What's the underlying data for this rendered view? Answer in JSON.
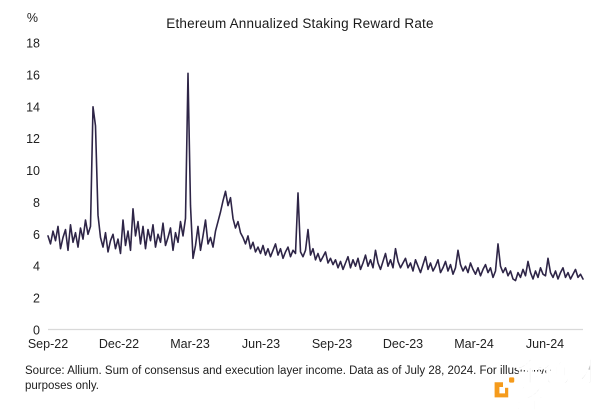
{
  "page": {
    "background": "#ffffff"
  },
  "chart_data": {
    "type": "line",
    "title": "Ethereum Annualized Staking Reward Rate",
    "unit_label": "%",
    "xlabel": "",
    "ylabel": "%",
    "ylim": [
      0,
      18
    ],
    "yticks": [
      0,
      2,
      4,
      6,
      8,
      10,
      12,
      14,
      16,
      18
    ],
    "xticklabels": [
      "Sep-22",
      "Dec-22",
      "Mar-23",
      "Jun-23",
      "Sep-23",
      "Dec-23",
      "Mar-24",
      "Jun-24"
    ],
    "grid": false,
    "legend_position": "none",
    "line_color": "#2e2547",
    "axis_line_color": "#d9d9d9",
    "series": [
      {
        "name": "Annualized staking reward rate (%)",
        "values": [
          5.9,
          5.4,
          6.2,
          5.6,
          6.5,
          5.1,
          5.8,
          6.3,
          5.0,
          6.6,
          5.5,
          6.1,
          5.2,
          6.4,
          5.7,
          6.9,
          6.0,
          6.5,
          14.0,
          12.8,
          7.2,
          5.8,
          5.2,
          6.1,
          4.9,
          5.6,
          6.0,
          5.1,
          5.7,
          4.8,
          6.9,
          5.3,
          6.2,
          5.0,
          7.6,
          5.9,
          6.8,
          5.4,
          6.5,
          5.1,
          6.3,
          5.6,
          6.6,
          5.2,
          6.0,
          5.5,
          6.7,
          5.3,
          5.8,
          6.4,
          5.0,
          6.1,
          5.5,
          6.8,
          5.9,
          7.0,
          16.1,
          7.8,
          4.5,
          5.3,
          6.5,
          5.0,
          5.9,
          6.9,
          5.4,
          5.8,
          5.2,
          6.2,
          6.8,
          7.4,
          8.1,
          8.7,
          7.8,
          8.3,
          7.0,
          6.4,
          6.8,
          6.1,
          5.8,
          5.4,
          5.9,
          5.1,
          5.5,
          4.9,
          5.2,
          4.8,
          5.3,
          4.7,
          5.1,
          4.6,
          5.0,
          5.4,
          4.7,
          5.1,
          4.5,
          4.9,
          5.2,
          4.6,
          5.0,
          4.8,
          8.6,
          4.9,
          4.6,
          5.0,
          6.3,
          4.7,
          5.1,
          4.4,
          4.8,
          4.3,
          4.6,
          4.9,
          4.2,
          4.5,
          4.1,
          4.4,
          3.9,
          4.3,
          3.8,
          4.2,
          4.6,
          3.9,
          4.4,
          4.0,
          4.5,
          3.8,
          4.2,
          4.7,
          4.0,
          4.4,
          3.9,
          5.0,
          4.2,
          3.8,
          4.3,
          4.8,
          4.0,
          4.4,
          3.9,
          5.1,
          4.3,
          3.9,
          4.2,
          4.5,
          3.9,
          4.2,
          3.7,
          4.4,
          4.0,
          3.6,
          4.1,
          4.6,
          3.8,
          4.2,
          3.7,
          4.0,
          4.4,
          3.6,
          3.9,
          4.3,
          3.7,
          4.1,
          3.5,
          3.9,
          5.0,
          4.1,
          3.7,
          4.0,
          3.6,
          4.2,
          3.8,
          3.5,
          3.9,
          3.4,
          3.8,
          4.1,
          3.6,
          3.9,
          3.3,
          3.7,
          5.4,
          4.0,
          3.6,
          3.9,
          3.4,
          3.7,
          3.2,
          3.1,
          3.6,
          3.3,
          3.8,
          3.4,
          4.3,
          3.6,
          3.2,
          3.7,
          3.3,
          3.9,
          3.5,
          3.4,
          4.5,
          3.6,
          3.3,
          3.7,
          3.2,
          3.6,
          3.9,
          3.3,
          3.6,
          3.2,
          3.5,
          3.8,
          3.3,
          3.5,
          3.2
        ]
      }
    ]
  },
  "footer": {
    "line1": "Source: Allium. Sum of consensus and execution layer income. Data as of July 28, 2024. For illustrative",
    "line2": "purposes only."
  },
  "watermark": {
    "text": "金色财经",
    "logo_color": "#f59b1c",
    "text_color": "#c3c3c3"
  }
}
